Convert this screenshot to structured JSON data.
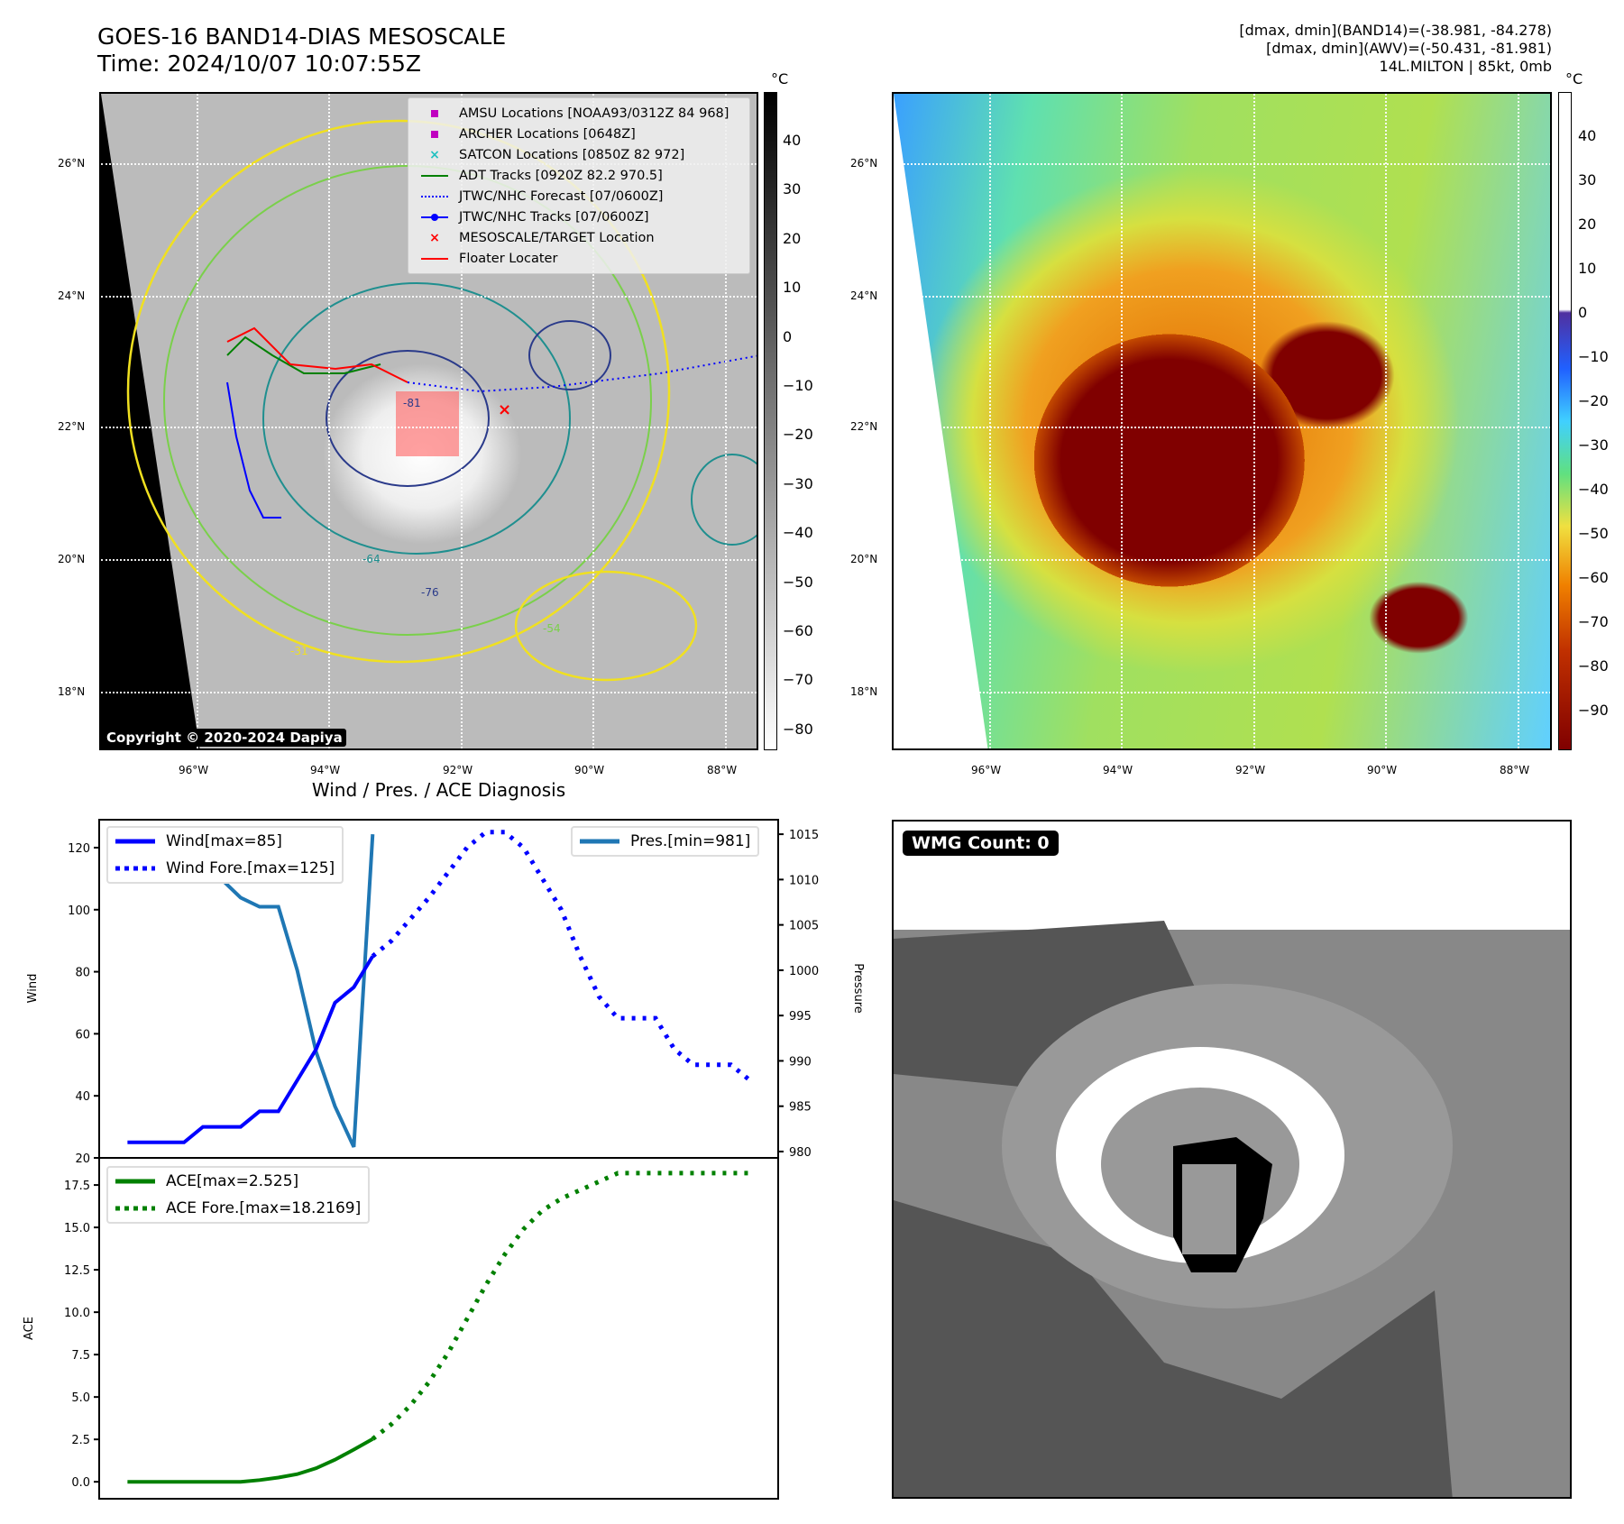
{
  "header": {
    "title": "GOES-16 BAND14-DIAS MESOSCALE",
    "time": "Time: 2024/10/07 10:07:55Z",
    "info": [
      "[dmax, dmin](BAND14)=(-38.981, -84.278)",
      "[dmax, dmin](AWV)=(-50.431, -81.981)",
      "14L.MILTON | 85kt, 0mb"
    ]
  },
  "maps": {
    "lon_ticks": [
      "96°W",
      "94°W",
      "92°W",
      "90°W",
      "88°W"
    ],
    "lat_ticks": [
      "26°N",
      "24°N",
      "22°N",
      "20°N",
      "18°N"
    ],
    "unit": "°C",
    "left_cbar_ticks": [
      "40",
      "30",
      "20",
      "10",
      "0",
      "−10",
      "−20",
      "−30",
      "−40",
      "−50",
      "−60",
      "−70",
      "−80"
    ],
    "right_cbar_ticks": [
      "40",
      "30",
      "20",
      "10",
      "0",
      "−10",
      "−20",
      "−30",
      "−40",
      "−50",
      "−60",
      "−70",
      "−80",
      "−90"
    ],
    "contour_labels": [
      "-31",
      "-54",
      "-64",
      "-76",
      "-81"
    ],
    "copyright": "Copyright © 2020-2024 Dapiya",
    "legend": [
      {
        "label": "AMSU Locations [NOAA93/0312Z 84 968]",
        "icon": "square-marker",
        "color": "#c000c0"
      },
      {
        "label": "ARCHER Locations [0648Z]",
        "icon": "square-marker",
        "color": "#c000c0"
      },
      {
        "label": "SATCON Locations [0850Z 82 972]",
        "icon": "x-marker",
        "color": "#20c0c0"
      },
      {
        "label": "ADT Tracks [0920Z 82.2 970.5]",
        "icon": "solid-line",
        "color": "#008000"
      },
      {
        "label": "JTWC/NHC Forecast [07/0600Z]",
        "icon": "dotted-line",
        "color": "#0000ff"
      },
      {
        "label": "JTWC/NHC Tracks [07/0600Z]",
        "icon": "line-dot",
        "color": "#0000ff"
      },
      {
        "label": "MESOSCALE/TARGET Location",
        "icon": "x-marker",
        "color": "#ff0000"
      },
      {
        "label": "Floater Locater",
        "icon": "solid-line",
        "color": "#ff0000"
      }
    ]
  },
  "wmg": {
    "label": "WMG Count: 0"
  },
  "chart_data": [
    {
      "type": "line",
      "title": "Wind / Pres. / ACE Diagnosis",
      "ylabel": "Wind",
      "y2label": "Pressure",
      "ylim": [
        20,
        129
      ],
      "y2lim": [
        979.3,
        1016.6
      ],
      "xlim": [
        -1.5,
        34.5
      ],
      "yticks": [
        20,
        40,
        60,
        80,
        100,
        120
      ],
      "y2ticks": [
        980,
        985,
        990,
        995,
        1000,
        1005,
        1010,
        1015
      ],
      "series": [
        {
          "name": "Wind[max=85]",
          "color": "#0000ff",
          "style": "solid",
          "axis": "left",
          "x": [
            0,
            1,
            2,
            3,
            4,
            5,
            6,
            7,
            8,
            9,
            10,
            11,
            12,
            13
          ],
          "values": [
            25,
            25,
            25,
            25,
            30,
            30,
            30,
            35,
            35,
            45,
            55,
            70,
            75,
            85
          ]
        },
        {
          "name": "Wind Fore.[max=125]",
          "color": "#0000ff",
          "style": "dotted",
          "axis": "left",
          "x": [
            13,
            14,
            15,
            16,
            17,
            18,
            19,
            20,
            21,
            22,
            23,
            24,
            25,
            26,
            27,
            28,
            29,
            30,
            31,
            32,
            33
          ],
          "values": [
            85,
            90,
            97,
            104,
            112,
            120,
            125,
            125,
            120,
            110,
            100,
            85,
            72,
            65,
            65,
            65,
            55,
            50,
            50,
            50,
            45
          ]
        },
        {
          "name": "Pres.[min=981]",
          "color": "#1f77b4",
          "style": "solid",
          "axis": "right",
          "x": [
            0,
            1,
            2,
            3,
            4,
            5,
            6,
            7,
            8,
            9,
            10,
            11,
            12,
            13
          ],
          "values": [
            1015,
            1015,
            1015,
            1015,
            1010,
            1010,
            1008,
            1007,
            1007,
            1000,
            991,
            985,
            980.5,
            1015
          ]
        }
      ]
    },
    {
      "type": "line",
      "ylabel": "ACE",
      "ylim": [
        -1.0,
        19.1
      ],
      "xlim": [
        -1.5,
        34.5
      ],
      "yticks": [
        "0.0",
        "2.5",
        "5.0",
        "7.5",
        "10.0",
        "12.5",
        "15.0",
        "17.5"
      ],
      "series": [
        {
          "name": "ACE[max=2.525]",
          "color": "#008000",
          "style": "solid",
          "x": [
            0,
            1,
            2,
            3,
            4,
            5,
            6,
            7,
            8,
            9,
            10,
            11,
            12,
            13
          ],
          "values": [
            0,
            0,
            0,
            0,
            0,
            0,
            0,
            0.1,
            0.25,
            0.45,
            0.8,
            1.3,
            1.9,
            2.525
          ]
        },
        {
          "name": "ACE Fore.[max=18.2169]",
          "color": "#008000",
          "style": "dotted",
          "x": [
            13,
            14,
            15,
            16,
            17,
            18,
            19,
            20,
            21,
            22,
            23,
            24,
            25,
            26,
            27,
            28,
            29,
            30,
            31,
            32,
            33
          ],
          "values": [
            2.525,
            3.4,
            4.5,
            5.9,
            7.6,
            9.6,
            11.6,
            13.4,
            14.9,
            16.0,
            16.7,
            17.2,
            17.7,
            18.2,
            18.2,
            18.2,
            18.2,
            18.2,
            18.2,
            18.2,
            18.2
          ]
        }
      ]
    }
  ]
}
